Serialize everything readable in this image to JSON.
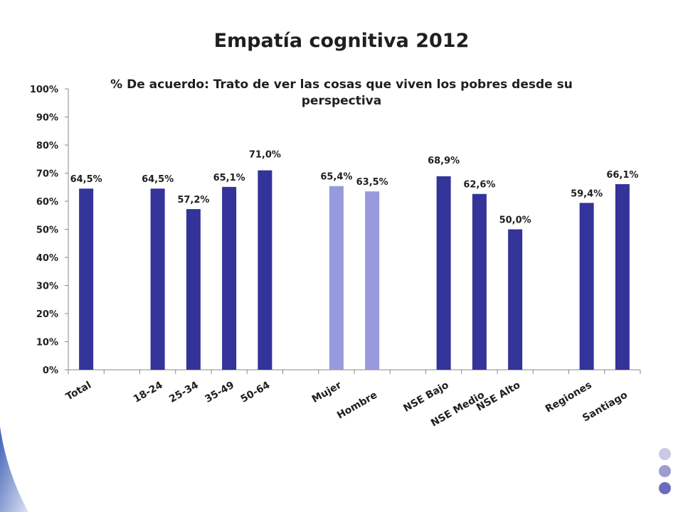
{
  "slide": {
    "title": "Empatía cognitiva 2012"
  },
  "chart_data": {
    "type": "bar",
    "title": "% De acuerdo: Trato de ver las cosas que viven los pobres desde su perspectiva",
    "title_lines": [
      "% De acuerdo: Trato de ver las cosas que viven los pobres desde su",
      "perspectiva"
    ],
    "categories": [
      "Total",
      "",
      "18-24",
      "25-34",
      "35-49",
      "50-64",
      "",
      "Mujer",
      "Hombre",
      "",
      "NSE Bajo",
      "NSE Medio",
      "NSE Alto",
      "",
      "Regiones",
      "Santiago"
    ],
    "values": [
      64.5,
      null,
      64.5,
      57.2,
      65.1,
      71.0,
      null,
      65.4,
      63.5,
      null,
      68.9,
      62.6,
      50.0,
      null,
      59.4,
      66.1
    ],
    "data_labels": [
      "64,5%",
      "",
      "64,5%",
      "57,2%",
      "65,1%",
      "71,0%",
      "",
      "65,4%",
      "63,5%",
      "",
      "68,9%",
      "62,6%",
      "50,0%",
      "",
      "59,4%",
      "66,1%"
    ],
    "bar_colors": [
      "#333399",
      null,
      "#333399",
      "#333399",
      "#333399",
      "#333399",
      null,
      "#9999dd",
      "#9999dd",
      null,
      "#333399",
      "#333399",
      "#333399",
      null,
      "#333399",
      "#333399"
    ],
    "ylim": [
      0,
      100
    ],
    "yticks": [
      "0%",
      "10%",
      "20%",
      "30%",
      "40%",
      "50%",
      "60%",
      "70%",
      "80%",
      "90%",
      "100%"
    ],
    "xlabel": "",
    "ylabel": "",
    "grid": false,
    "legend": "none"
  },
  "colors": {
    "primary_bar": "#333399",
    "secondary_bar": "#9999dd",
    "accent_dots": [
      "#c9c9e6",
      "#9d9dd1",
      "#6b6bbd"
    ],
    "deco_gradient": [
      "#3f5fb8",
      "#dfe4f3"
    ]
  }
}
